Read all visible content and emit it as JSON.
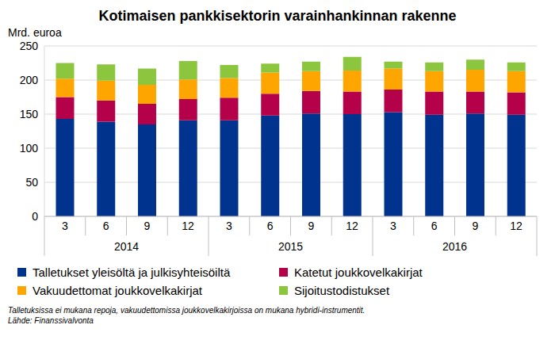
{
  "chart_data": {
    "type": "bar",
    "title": "Kotimaisen pankkisektorin varainhankinnan rakenne",
    "y_label": "Mrd. euroa",
    "categories": [
      "3",
      "6",
      "9",
      "12",
      "3",
      "6",
      "9",
      "12",
      "3",
      "6",
      "9",
      "12"
    ],
    "x_group_labels": [
      "2014",
      "2015",
      "2016"
    ],
    "series": [
      {
        "name": "Talletukset yleisöltä ja julkisyhteisöiltä",
        "color": "#00338d",
        "values": [
          143,
          139,
          135,
          141,
          141,
          148,
          151,
          150,
          153,
          149,
          151,
          149
        ]
      },
      {
        "name": "Katetut joukkovelkakirjat",
        "color": "#b5004a",
        "values": [
          32,
          31,
          30,
          31,
          33,
          32,
          33,
          33,
          33,
          34,
          32,
          33
        ]
      },
      {
        "name": "Vakuudettomat joukkovelkakirjat",
        "color": "#ffa500",
        "values": [
          27,
          29,
          28,
          29,
          29,
          31,
          29,
          31,
          31,
          30,
          32,
          31
        ]
      },
      {
        "name": "Sijoitustodistukset",
        "color": "#8cc63f",
        "values": [
          23,
          24,
          24,
          27,
          19,
          13,
          14,
          20,
          10,
          13,
          15,
          13
        ]
      }
    ],
    "ylim": [
      0,
      250
    ],
    "yticks": [
      0,
      50,
      100,
      150,
      200,
      250
    ],
    "grid": true,
    "stacked": true,
    "legend": "bottom",
    "notes": [
      "Talletuksissa ei mukana repoja, vakuudettomissa joukkovelkakirjoissa on mukana hybridi-instrumentit.",
      "Lähde: Finanssivalvonta"
    ]
  }
}
